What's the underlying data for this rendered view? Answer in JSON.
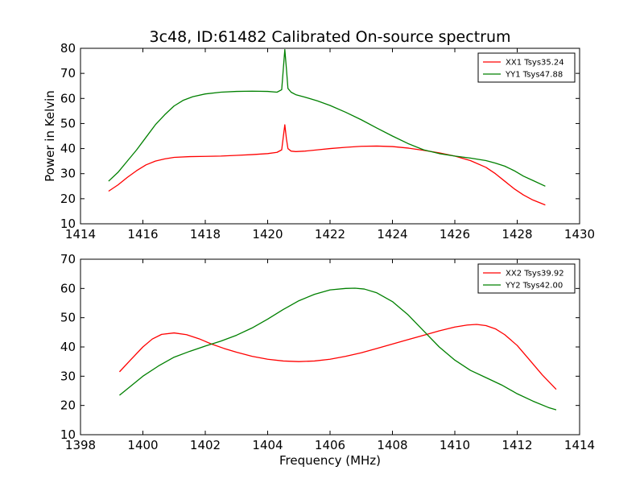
{
  "figure": {
    "title": "3c48, ID:61482 Calibrated On-source spectrum"
  },
  "chart_data": [
    {
      "type": "line",
      "id": "top",
      "title": "3c48, ID:61482 Calibrated On-source spectrum",
      "xlabel": "",
      "ylabel": "Power in Kelvin",
      "xlim": [
        1414,
        1430
      ],
      "ylim": [
        10,
        80
      ],
      "xticks": [
        1414,
        1416,
        1418,
        1420,
        1422,
        1424,
        1426,
        1428,
        1430
      ],
      "yticks": [
        10,
        20,
        30,
        40,
        50,
        60,
        70,
        80
      ],
      "grid": false,
      "legend": "top-right",
      "series": [
        {
          "name": "XX1 Tsys35.24",
          "color": "#ff0000",
          "x": [
            1414.9,
            1415.2,
            1415.5,
            1415.8,
            1416.1,
            1416.4,
            1416.7,
            1417.0,
            1417.5,
            1418.0,
            1418.5,
            1419.0,
            1419.5,
            1420.0,
            1420.3,
            1420.45,
            1420.55,
            1420.6,
            1420.65,
            1420.75,
            1420.9,
            1421.2,
            1421.6,
            1422.0,
            1422.5,
            1423.0,
            1423.5,
            1424.0,
            1424.5,
            1425.0,
            1425.5,
            1426.0,
            1426.5,
            1427.0,
            1427.3,
            1427.6,
            1427.9,
            1428.2,
            1428.5,
            1428.9
          ],
          "y": [
            23.0,
            25.5,
            28.5,
            31.2,
            33.5,
            35.0,
            35.9,
            36.5,
            36.8,
            36.9,
            37.0,
            37.3,
            37.6,
            38.0,
            38.5,
            39.5,
            49.5,
            44.0,
            40.0,
            39.0,
            38.8,
            39.0,
            39.5,
            40.0,
            40.5,
            40.9,
            41.0,
            40.8,
            40.2,
            39.3,
            38.3,
            37.0,
            35.2,
            32.5,
            30.0,
            27.0,
            24.0,
            21.5,
            19.5,
            17.5
          ]
        },
        {
          "name": "YY1 Tsys47.88",
          "color": "#008000",
          "x": [
            1414.9,
            1415.2,
            1415.5,
            1415.8,
            1416.1,
            1416.4,
            1416.7,
            1417.0,
            1417.3,
            1417.6,
            1418.0,
            1418.5,
            1419.0,
            1419.5,
            1420.0,
            1420.3,
            1420.45,
            1420.55,
            1420.6,
            1420.65,
            1420.75,
            1420.9,
            1421.2,
            1421.6,
            1422.0,
            1422.5,
            1423.0,
            1423.5,
            1424.0,
            1424.5,
            1425.0,
            1425.5,
            1426.0,
            1426.5,
            1427.0,
            1427.3,
            1427.6,
            1427.9,
            1428.2,
            1428.5,
            1428.9
          ],
          "y": [
            27.0,
            30.5,
            35.0,
            39.5,
            44.5,
            49.5,
            53.5,
            57.0,
            59.3,
            60.7,
            61.8,
            62.5,
            62.8,
            62.9,
            62.8,
            62.5,
            63.5,
            79.5,
            72.0,
            64.0,
            62.5,
            61.5,
            60.5,
            59.0,
            57.2,
            54.5,
            51.5,
            48.2,
            45.0,
            42.0,
            39.5,
            38.0,
            37.0,
            36.2,
            35.2,
            34.2,
            33.0,
            31.2,
            29.0,
            27.3,
            25.0
          ]
        }
      ]
    },
    {
      "type": "line",
      "id": "bottom",
      "title": "",
      "xlabel": "Frequency (MHz)",
      "ylabel": "",
      "xlim": [
        1398,
        1414
      ],
      "ylim": [
        10,
        70
      ],
      "xticks": [
        1398,
        1400,
        1402,
        1404,
        1406,
        1408,
        1410,
        1412,
        1414
      ],
      "yticks": [
        10,
        20,
        30,
        40,
        50,
        60,
        70
      ],
      "grid": false,
      "legend": "top-right",
      "series": [
        {
          "name": "XX2 Tsys39.92",
          "color": "#ff0000",
          "x": [
            1399.25,
            1399.6,
            1400.0,
            1400.3,
            1400.6,
            1401.0,
            1401.4,
            1401.8,
            1402.2,
            1402.6,
            1403.0,
            1403.5,
            1404.0,
            1404.5,
            1405.0,
            1405.5,
            1406.0,
            1406.5,
            1407.0,
            1407.5,
            1408.0,
            1408.5,
            1409.0,
            1409.5,
            1410.0,
            1410.4,
            1410.7,
            1411.0,
            1411.3,
            1411.6,
            1412.0,
            1412.4,
            1412.8,
            1413.25
          ],
          "y": [
            31.5,
            35.5,
            40.0,
            42.7,
            44.3,
            44.8,
            44.2,
            42.8,
            41.0,
            39.5,
            38.2,
            36.8,
            35.8,
            35.2,
            35.0,
            35.2,
            35.8,
            36.8,
            38.0,
            39.5,
            41.0,
            42.5,
            44.0,
            45.5,
            46.8,
            47.5,
            47.7,
            47.3,
            46.2,
            44.2,
            40.5,
            35.5,
            30.5,
            25.5
          ]
        },
        {
          "name": "YY2 Tsys42.00",
          "color": "#008000",
          "x": [
            1399.25,
            1399.6,
            1400.0,
            1400.5,
            1401.0,
            1401.5,
            1402.0,
            1402.5,
            1403.0,
            1403.5,
            1404.0,
            1404.5,
            1405.0,
            1405.5,
            1406.0,
            1406.5,
            1406.8,
            1407.1,
            1407.5,
            1408.0,
            1408.5,
            1409.0,
            1409.5,
            1410.0,
            1410.5,
            1411.0,
            1411.5,
            1412.0,
            1412.5,
            1413.0,
            1413.25
          ],
          "y": [
            23.5,
            26.5,
            30.0,
            33.5,
            36.5,
            38.5,
            40.3,
            42.0,
            44.0,
            46.5,
            49.5,
            52.8,
            55.8,
            58.0,
            59.5,
            60.0,
            60.1,
            59.8,
            58.5,
            55.5,
            51.0,
            45.5,
            40.0,
            35.5,
            32.0,
            29.5,
            27.0,
            24.0,
            21.5,
            19.3,
            18.5
          ]
        }
      ]
    }
  ]
}
